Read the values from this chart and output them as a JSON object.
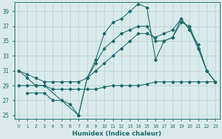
{
  "xlabel": "Humidex (Indice chaleur)",
  "xlim": [
    -0.5,
    23.5
  ],
  "ylim": [
    24.5,
    40.2
  ],
  "yticks": [
    25,
    27,
    29,
    31,
    33,
    35,
    37,
    39
  ],
  "xticks": [
    0,
    1,
    2,
    3,
    4,
    5,
    6,
    7,
    8,
    9,
    10,
    11,
    12,
    13,
    14,
    15,
    16,
    17,
    18,
    19,
    20,
    21,
    22,
    23
  ],
  "bg_color": "#daeaea",
  "grid_color": "#b0d0d0",
  "line_color": "#1a6b6b",
  "series": [
    {
      "x": [
        0,
        1,
        2,
        3,
        4,
        5,
        6,
        7,
        8,
        9,
        10,
        11,
        12,
        13,
        14,
        15,
        16,
        17,
        18,
        19,
        20,
        21,
        22,
        23
      ],
      "y": [
        31,
        30.5,
        30,
        29.5,
        29.5,
        29.5,
        29.5,
        29.5,
        30,
        31,
        32,
        33,
        34,
        35,
        36,
        36,
        35.5,
        36,
        36.5,
        38,
        36.5,
        34.5,
        31,
        29.5
      ]
    },
    {
      "x": [
        0,
        1,
        2,
        3,
        7,
        8,
        9,
        10,
        11,
        12,
        13,
        14,
        15,
        16,
        17,
        18,
        19,
        20,
        21,
        22,
        23
      ],
      "y": [
        31,
        30,
        29,
        29,
        25,
        30,
        32.5,
        36,
        37.5,
        38,
        39,
        40,
        39.5,
        32.5,
        35,
        35.5,
        38,
        36.5,
        34,
        31,
        29.5
      ]
    },
    {
      "x": [
        0,
        1,
        2,
        3,
        4,
        5,
        6,
        7,
        8,
        9,
        10,
        11,
        12,
        13,
        14,
        15,
        16,
        17,
        18,
        19,
        20,
        21,
        22,
        23
      ],
      "y": [
        29,
        29,
        29,
        29,
        28.5,
        28.5,
        28.5,
        28.5,
        28.5,
        28.5,
        28.8,
        29,
        29,
        29,
        29,
        29.2,
        29.5,
        29.5,
        29.5,
        29.5,
        29.5,
        29.5,
        29.5,
        29.5
      ]
    },
    {
      "x": [
        1,
        2,
        3,
        4,
        5,
        6,
        7,
        8,
        9,
        10,
        11,
        12,
        13,
        14,
        15,
        16,
        17,
        18,
        19,
        20,
        21,
        22,
        23
      ],
      "y": [
        28,
        28,
        28,
        27,
        27,
        26.5,
        25,
        30,
        32,
        34,
        35,
        36,
        36.5,
        37,
        37,
        35,
        35,
        35.5,
        37.5,
        37,
        34,
        31,
        29.5
      ]
    }
  ]
}
